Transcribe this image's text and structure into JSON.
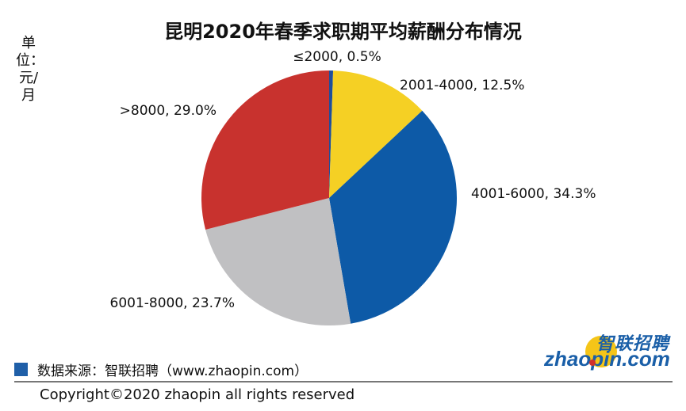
{
  "chart_data": {
    "type": "pie",
    "title": "昆明2020年春季求职期平均薪酬分布情况",
    "unit_label": "单位：元/月",
    "slices": [
      {
        "label": "≤2000",
        "value": 0.5,
        "text": "≤2000, 0.5%",
        "color": "#1f4e9a"
      },
      {
        "label": "2001-4000",
        "value": 12.5,
        "text": "2001-4000, 12.5%",
        "color": "#f5d024"
      },
      {
        "label": "4001-6000",
        "value": 34.3,
        "text": "4001-6000, 34.3%",
        "color": "#0d5aa7"
      },
      {
        "label": "6001-8000",
        "value": 23.7,
        "text": "6001-8000, 23.7%",
        "color": "#c0c0c2"
      },
      {
        "label": ">8000",
        "value": 29.0,
        "text": ">8000, 29.0%",
        "color": "#c8322e"
      }
    ],
    "start": "top",
    "direction": "clockwise"
  },
  "source": {
    "text": "数据来源：智联招聘（www.zhaopin.com）",
    "marker_color": "#1f5fa8"
  },
  "copyright": "Copyright©2020 zhaopin all rights reserved",
  "logo": {
    "cn": "智联招聘",
    "en": "zhaopin.com"
  }
}
